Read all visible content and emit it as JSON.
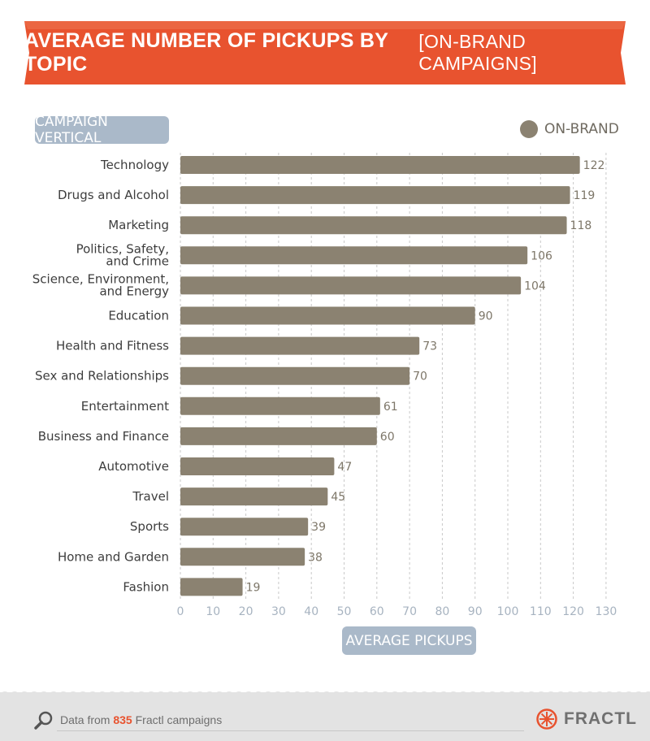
{
  "header": {
    "title": "AVERAGE NUMBER OF PICKUPS BY TOPIC",
    "subtitle": "[ON-BRAND CAMPAIGNS]",
    "banner_color": "#e8532f"
  },
  "axis_labels": {
    "y": "CAMPAIGN VERTICAL",
    "x": "AVERAGE PICKUPS"
  },
  "legend": {
    "label": "ON-BRAND",
    "color": "#8b8271"
  },
  "chart_data": {
    "type": "bar",
    "orientation": "horizontal",
    "categories": [
      "Technology",
      "Drugs and Alcohol",
      "Marketing",
      "Politics, Safety,\nand Crime",
      "Science, Environment,\nand Energy",
      "Education",
      "Health and Fitness",
      "Sex and Relationships",
      "Entertainment",
      "Business and Finance",
      "Automotive",
      "Travel",
      "Sports",
      "Home and Garden",
      "Fashion"
    ],
    "series": [
      {
        "name": "ON-BRAND",
        "values": [
          122,
          119,
          118,
          106,
          104,
          90,
          73,
          70,
          61,
          60,
          47,
          45,
          39,
          38,
          19
        ]
      }
    ],
    "xlim": [
      0,
      130
    ],
    "xticks": [
      0,
      10,
      20,
      30,
      40,
      50,
      60,
      70,
      80,
      90,
      100,
      110,
      120,
      130
    ],
    "grid": "vertical dashed",
    "legend_position": "top-right",
    "bar_color": "#8b8271"
  },
  "footer": {
    "prefix": "Data from",
    "count": "835",
    "suffix": "Fractl campaigns",
    "brand": "FRACTL",
    "accent": "#e8532f"
  }
}
